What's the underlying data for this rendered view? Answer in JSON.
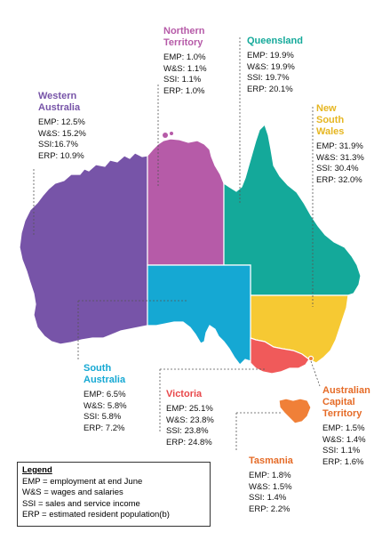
{
  "colors": {
    "WA": "#7754a8",
    "NT": "#b65ba8",
    "QLD": "#14a99a",
    "NSW": "#f6c933",
    "SA": "#15a8d3",
    "VIC": "#f05a5a",
    "TAS": "#f08038",
    "ACT": "#f08038",
    "title": "#7c5aa3"
  },
  "regions": [
    {
      "id": "wa",
      "name": "Western Australia",
      "stats": [
        "EMP: 12.5%",
        "W&S: 15.2%",
        "SSI:16.7%",
        "ERP: 10.9%"
      ],
      "title_color": "#7754a8"
    },
    {
      "id": "nt",
      "name": "Northern Territory",
      "stats": [
        "EMP: 1.0%",
        "W&S: 1.1%",
        "SSI: 1.1%",
        "ERP: 1.0%"
      ],
      "title_color": "#b65ba8"
    },
    {
      "id": "qld",
      "name": "Queensland",
      "stats": [
        "EMP: 19.9%",
        "W&S: 19.9%",
        "SSI: 19.7%",
        "ERP: 20.1%"
      ],
      "title_color": "#14a99a"
    },
    {
      "id": "nsw",
      "name": "New South Wales",
      "stats": [
        "EMP: 31.9%",
        "W&S: 31.3%",
        "SSI: 30.4%",
        "ERP: 32.0%"
      ],
      "title_color": "#e6b621"
    },
    {
      "id": "sa",
      "name": "South Australia",
      "stats": [
        "EMP: 6.5%",
        "W&S: 5.8%",
        "SSI: 5.8%",
        "ERP: 7.2%"
      ],
      "title_color": "#15a8d3"
    },
    {
      "id": "vic",
      "name": "Victoria",
      "stats": [
        "EMP: 25.1%",
        "W&S: 23.8%",
        "SSI: 23.8%",
        "ERP: 24.8%"
      ],
      "title_color": "#e8474a"
    },
    {
      "id": "act",
      "name": "Australian Capital Territory",
      "stats": [
        "EMP: 1.5%",
        "W&S: 1.4%",
        "SSI: 1.1%",
        "ERP: 1.6%"
      ],
      "title_color": "#e56b27"
    },
    {
      "id": "tas",
      "name": "Tasmania",
      "stats": [
        "EMP: 1.8%",
        "W&S: 1.5%",
        "SSI: 1.4%",
        "ERP: 2.2%"
      ],
      "title_color": "#e56b27"
    }
  ],
  "legend": {
    "title": "Legend",
    "items": [
      "EMP = employment at end June",
      "W&S = wages and salaries",
      "SSI = sales and service income",
      "ERP = estimated resident population(b)"
    ]
  }
}
